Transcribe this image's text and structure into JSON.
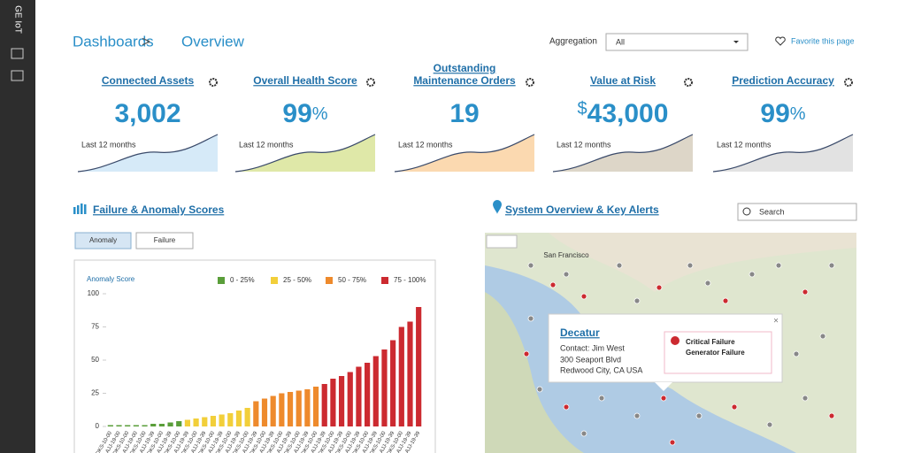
{
  "header": {
    "logo": "GE IoT",
    "breadcrumb": [
      "Dashboards",
      ">",
      "Overview"
    ],
    "aggregation_label": "Aggregation",
    "aggregation_value": "All",
    "favorite": "Favorite this page"
  },
  "kpis": [
    {
      "title": "Connected Assets",
      "value": "3,002",
      "period": "Last 12 months"
    },
    {
      "title": "Overall Health Score",
      "value": "99",
      "suffix": "%",
      "period": "Last 12 months"
    },
    {
      "title": [
        "Outstanding",
        "Maintenance Orders"
      ],
      "value": "19",
      "period": "Last 12 months"
    },
    {
      "title": "Value at Risk",
      "prefix": "$",
      "value": "43,000",
      "period": "Last 12 months"
    },
    {
      "title": "Prediction Accuracy",
      "value": "99",
      "suffix": "%",
      "period": "Last 12 months"
    }
  ],
  "failure_section": {
    "title": "Failure & Anomaly Scores",
    "buttons": [
      "Anomaly",
      "Failure"
    ]
  },
  "chart_data": {
    "type": "bar",
    "y_label": "Anomaly Score",
    "legend": [
      {
        "name": "0 - 25%",
        "color": "#5a9e3a"
      },
      {
        "name": "25 - 50%",
        "color": "#f2cf3a"
      },
      {
        "name": "50 - 75%",
        "color": "#ee8a2c"
      },
      {
        "name": "75 - 100%",
        "color": "#cc2a30"
      }
    ],
    "categories": [
      "DKS-10-00",
      "AJJ-19-00",
      "DKS-10-00",
      "AJJ-19-00",
      "DKS-10-00",
      "AJJ-19-39",
      "DKS-10-00",
      "AJJ-19-39",
      "DKS-10-00",
      "AJJ-19-39",
      "DKS-10-00",
      "AJJ-19-39",
      "DKS-10-00",
      "AJJ-19-39",
      "DKS-10-00",
      "AJJ-19-39",
      "DKS-10-00",
      "AJJ-19-39",
      "DKS-10-00",
      "AJJ-19-39",
      "DKS-10-00",
      "AJJ-19-39",
      "DKS-10-00",
      "AJJ-19-39",
      "DKS-10-00",
      "AJJ-19-39",
      "DKS-10-00",
      "AJJ-19-39",
      "DKS-10-00",
      "AJJ-19-39",
      "DKS-10-00",
      "AJJ-19-39",
      "DKS-10-00",
      "AJJ-19-39",
      "DKS-10-00",
      "AJJ-19-39",
      "AJJ-19-39"
    ],
    "values": [
      1,
      1,
      1,
      1,
      1,
      2,
      2,
      3,
      4,
      5,
      6,
      7,
      8,
      9,
      10,
      12,
      14,
      19,
      21,
      23,
      25,
      26,
      27,
      28,
      30,
      32,
      36,
      38,
      41,
      45,
      48,
      53,
      58,
      65,
      75,
      79,
      90
    ],
    "groups": [
      0,
      0,
      0,
      0,
      0,
      0,
      0,
      0,
      0,
      1,
      1,
      1,
      1,
      1,
      1,
      1,
      1,
      2,
      2,
      2,
      2,
      2,
      2,
      2,
      2,
      3,
      3,
      3,
      3,
      3,
      3,
      3,
      3,
      3,
      3,
      3,
      3
    ],
    "ylim": [
      0,
      100
    ],
    "yticks": [
      0,
      25,
      50,
      75,
      100
    ],
    "grid": false
  },
  "map_section": {
    "title": "System Overview & Key Alerts",
    "search": "Search",
    "map_label": "San Francisco",
    "popup": {
      "name": "Decatur",
      "lines": [
        "Contact: Jim West",
        "300 Seaport Blvd",
        "Redwood City, CA USA"
      ],
      "alert": [
        "Critical Failure",
        "Generator Failure"
      ]
    }
  }
}
